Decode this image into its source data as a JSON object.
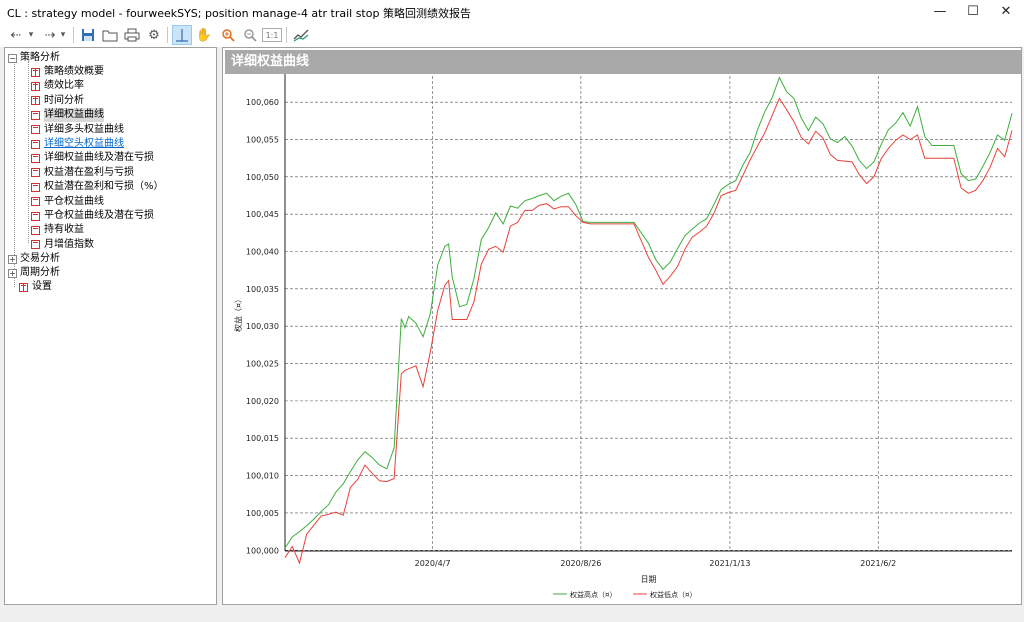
{
  "window": {
    "title": "CL : strategy model -  fourweekSYS; position manage-4 atr trail stop 策略回测绩效报告",
    "minimize": "—",
    "maximize": "☐",
    "close": "✕"
  },
  "toolbar": {
    "buttons": [
      "back-arrow",
      "dropdown-arrow",
      "forward-arrow",
      "save-icon",
      "folder-icon",
      "print-icon",
      "settings-gear-icon",
      "crosshair-icon",
      "hand-pan-icon",
      "zoom-in-icon",
      "zoom-out-icon",
      "fit-1-1-icon",
      "chart-line-icon"
    ],
    "fit_label": "1:1"
  },
  "tree": {
    "groups": [
      {
        "label": "策略分析",
        "expanded": true,
        "sign": "−"
      },
      {
        "label": "交易分析",
        "expanded": false,
        "sign": "+"
      },
      {
        "label": "周期分析",
        "expanded": false,
        "sign": "+"
      }
    ],
    "items": [
      {
        "label": "策略绩效概要",
        "icon": "grid"
      },
      {
        "label": "绩效比率",
        "icon": "grid"
      },
      {
        "label": "时间分析",
        "icon": "grid"
      },
      {
        "label": "详细权益曲线",
        "icon": "chart",
        "selected": true
      },
      {
        "label": "详细多头权益曲线",
        "icon": "chart"
      },
      {
        "label": "详细空头权益曲线",
        "icon": "chart",
        "link": true
      },
      {
        "label": "详细权益曲线及潜在亏损",
        "icon": "chart"
      },
      {
        "label": "权益潜在盈利与亏损",
        "icon": "chart"
      },
      {
        "label": "权益潜在盈利和亏损（%）",
        "icon": "chart"
      },
      {
        "label": "平仓权益曲线",
        "icon": "chart"
      },
      {
        "label": "平仓权益曲线及潜在亏损",
        "icon": "chart"
      },
      {
        "label": "持有收益",
        "icon": "chart"
      },
      {
        "label": "月增值指数",
        "icon": "chart"
      }
    ],
    "settings_label": "设置"
  },
  "panel": {
    "title": "详细权益曲线"
  },
  "chart_data": {
    "type": "line",
    "title": "",
    "xlabel": "日期",
    "ylabel": "权益（¤）",
    "ylim": [
      99999.9,
      100063.5
    ],
    "yticks": [
      100000,
      100005,
      100010,
      100015,
      100020,
      100025,
      100030,
      100035,
      100040,
      100045,
      100050,
      100055,
      100060
    ],
    "ytick_labels": [
      "100,000",
      "100,005",
      "100,010",
      "100,015",
      "100,020",
      "100,025",
      "100,030",
      "100,035",
      "100,040",
      "100,045",
      "100,050",
      "100,055",
      "100,060"
    ],
    "xticks": [
      {
        "label": "2020/4/7",
        "pos": 0.203
      },
      {
        "label": "2020/8/26",
        "pos": 0.407
      },
      {
        "label": "2021/1/13",
        "pos": 0.612
      },
      {
        "label": "2021/6/2",
        "pos": 0.816
      }
    ],
    "grid": true,
    "legend_position": "bottom-center",
    "colors": {
      "high": "#3cae3c",
      "low": "#e8413b"
    },
    "series": [
      {
        "name": "权益高点（¤）",
        "x": [
          0,
          0.01,
          0.02,
          0.03,
          0.04,
          0.05,
          0.06,
          0.07,
          0.08,
          0.09,
          0.1,
          0.11,
          0.12,
          0.13,
          0.14,
          0.15,
          0.16,
          0.165,
          0.17,
          0.18,
          0.19,
          0.2,
          0.21,
          0.22,
          0.225,
          0.23,
          0.24,
          0.25,
          0.26,
          0.27,
          0.28,
          0.29,
          0.3,
          0.31,
          0.32,
          0.33,
          0.34,
          0.35,
          0.36,
          0.37,
          0.38,
          0.39,
          0.4,
          0.41,
          0.42,
          0.44,
          0.46,
          0.48,
          0.5,
          0.51,
          0.52,
          0.53,
          0.54,
          0.55,
          0.56,
          0.57,
          0.58,
          0.59,
          0.6,
          0.61,
          0.62,
          0.63,
          0.64,
          0.65,
          0.66,
          0.67,
          0.68,
          0.69,
          0.7,
          0.71,
          0.72,
          0.73,
          0.74,
          0.75,
          0.76,
          0.77,
          0.78,
          0.79,
          0.8,
          0.81,
          0.82,
          0.83,
          0.84,
          0.85,
          0.86,
          0.87,
          0.88,
          0.89,
          0.9,
          0.91,
          0.92,
          0.93,
          0.94,
          0.95,
          0.96,
          0.97,
          0.98,
          0.99,
          1.0
        ],
        "values": [
          100000.3,
          100001.8,
          100002.5,
          100003.3,
          100004.2,
          100005.2,
          100006.1,
          100007.8,
          100008.9,
          100010.5,
          100012.1,
          100013.2,
          100012.4,
          100011.4,
          100010.9,
          100013.7,
          100031.0,
          100029.8,
          100031.3,
          100030.4,
          100028.6,
          100031.7,
          100038.2,
          100040.7,
          100041.0,
          100036.6,
          100032.6,
          100032.9,
          100036.4,
          100041.6,
          100043.2,
          100045.2,
          100043.7,
          100046.1,
          100045.8,
          100046.8,
          100047.1,
          100047.5,
          100047.8,
          100046.8,
          100047.4,
          100047.8,
          100046.3,
          100044.0,
          100043.9,
          100043.9,
          100043.9,
          100043.9,
          100041.1,
          100038.9,
          100037.6,
          100038.6,
          100040.4,
          100042.1,
          100043.0,
          100043.8,
          100044.4,
          100046.3,
          100048.3,
          100049.0,
          100049.5,
          100051.6,
          100053.3,
          100056.3,
          100058.7,
          100060.6,
          100063.3,
          100061.4,
          100060.5,
          100057.9,
          100056.2,
          100058.0,
          100057.1,
          100055.1,
          100054.6,
          100055.4,
          100054.1,
          100052.2,
          100051.1,
          100052.0,
          100054.3,
          100056.3,
          100057.2,
          100058.6,
          100056.8,
          100059.4,
          100055.4,
          100054.2,
          100054.2,
          100054.2,
          100054.2,
          100050.4,
          100049.5,
          100049.7,
          100051.4,
          100053.3,
          100055.6,
          100054.9,
          100058.5
        ]
      },
      {
        "name": "权益低点（¤）",
        "x": [
          0,
          0.01,
          0.02,
          0.03,
          0.04,
          0.05,
          0.06,
          0.07,
          0.08,
          0.09,
          0.1,
          0.11,
          0.12,
          0.13,
          0.14,
          0.15,
          0.16,
          0.165,
          0.17,
          0.18,
          0.19,
          0.2,
          0.21,
          0.22,
          0.225,
          0.23,
          0.24,
          0.25,
          0.26,
          0.27,
          0.28,
          0.29,
          0.3,
          0.31,
          0.32,
          0.33,
          0.34,
          0.35,
          0.36,
          0.37,
          0.38,
          0.39,
          0.4,
          0.41,
          0.42,
          0.44,
          0.46,
          0.48,
          0.5,
          0.51,
          0.52,
          0.53,
          0.54,
          0.55,
          0.56,
          0.57,
          0.58,
          0.59,
          0.6,
          0.61,
          0.62,
          0.63,
          0.64,
          0.65,
          0.66,
          0.67,
          0.68,
          0.69,
          0.7,
          0.71,
          0.72,
          0.73,
          0.74,
          0.75,
          0.76,
          0.77,
          0.78,
          0.79,
          0.8,
          0.81,
          0.82,
          0.83,
          0.84,
          0.85,
          0.86,
          0.87,
          0.88,
          0.89,
          0.9,
          0.91,
          0.92,
          0.93,
          0.94,
          0.95,
          0.96,
          0.97,
          0.98,
          0.99,
          1.0
        ],
        "values": [
          99999.0,
          100000.5,
          99998.3,
          100002.2,
          100003.4,
          100004.6,
          100004.8,
          100005.1,
          100004.7,
          100008.4,
          100009.5,
          100011.4,
          100010.3,
          100009.3,
          100009.2,
          100009.6,
          100023.6,
          100024.1,
          100024.3,
          100024.7,
          100021.9,
          100026.6,
          100032.1,
          100035.5,
          100036.1,
          100030.9,
          100030.9,
          100030.9,
          100033.3,
          100038.3,
          100040.3,
          100040.7,
          100039.9,
          100043.4,
          100043.9,
          100045.5,
          100045.5,
          100046.2,
          100046.4,
          100045.7,
          100046.0,
          100046.0,
          100044.8,
          100043.9,
          100043.7,
          100043.7,
          100043.7,
          100043.7,
          100039.2,
          100037.5,
          100035.6,
          100036.7,
          100038.0,
          100040.3,
          100041.9,
          100042.6,
          100043.4,
          100045.1,
          100047.5,
          100047.9,
          100048.2,
          100050.2,
          100052.3,
          100054.1,
          100055.9,
          100058.2,
          100060.5,
          100059.0,
          100057.4,
          100055.3,
          100054.4,
          100056.1,
          100055.2,
          100053.0,
          100052.2,
          100052.1,
          100052.0,
          100050.3,
          100049.1,
          100050.0,
          100052.4,
          100053.8,
          100054.9,
          100055.6,
          100055.0,
          100055.6,
          100052.5,
          100052.5,
          100052.5,
          100052.5,
          100052.5,
          100048.5,
          100047.8,
          100048.2,
          100049.5,
          100051.3,
          100053.8,
          100052.7,
          100056.2
        ]
      }
    ]
  }
}
